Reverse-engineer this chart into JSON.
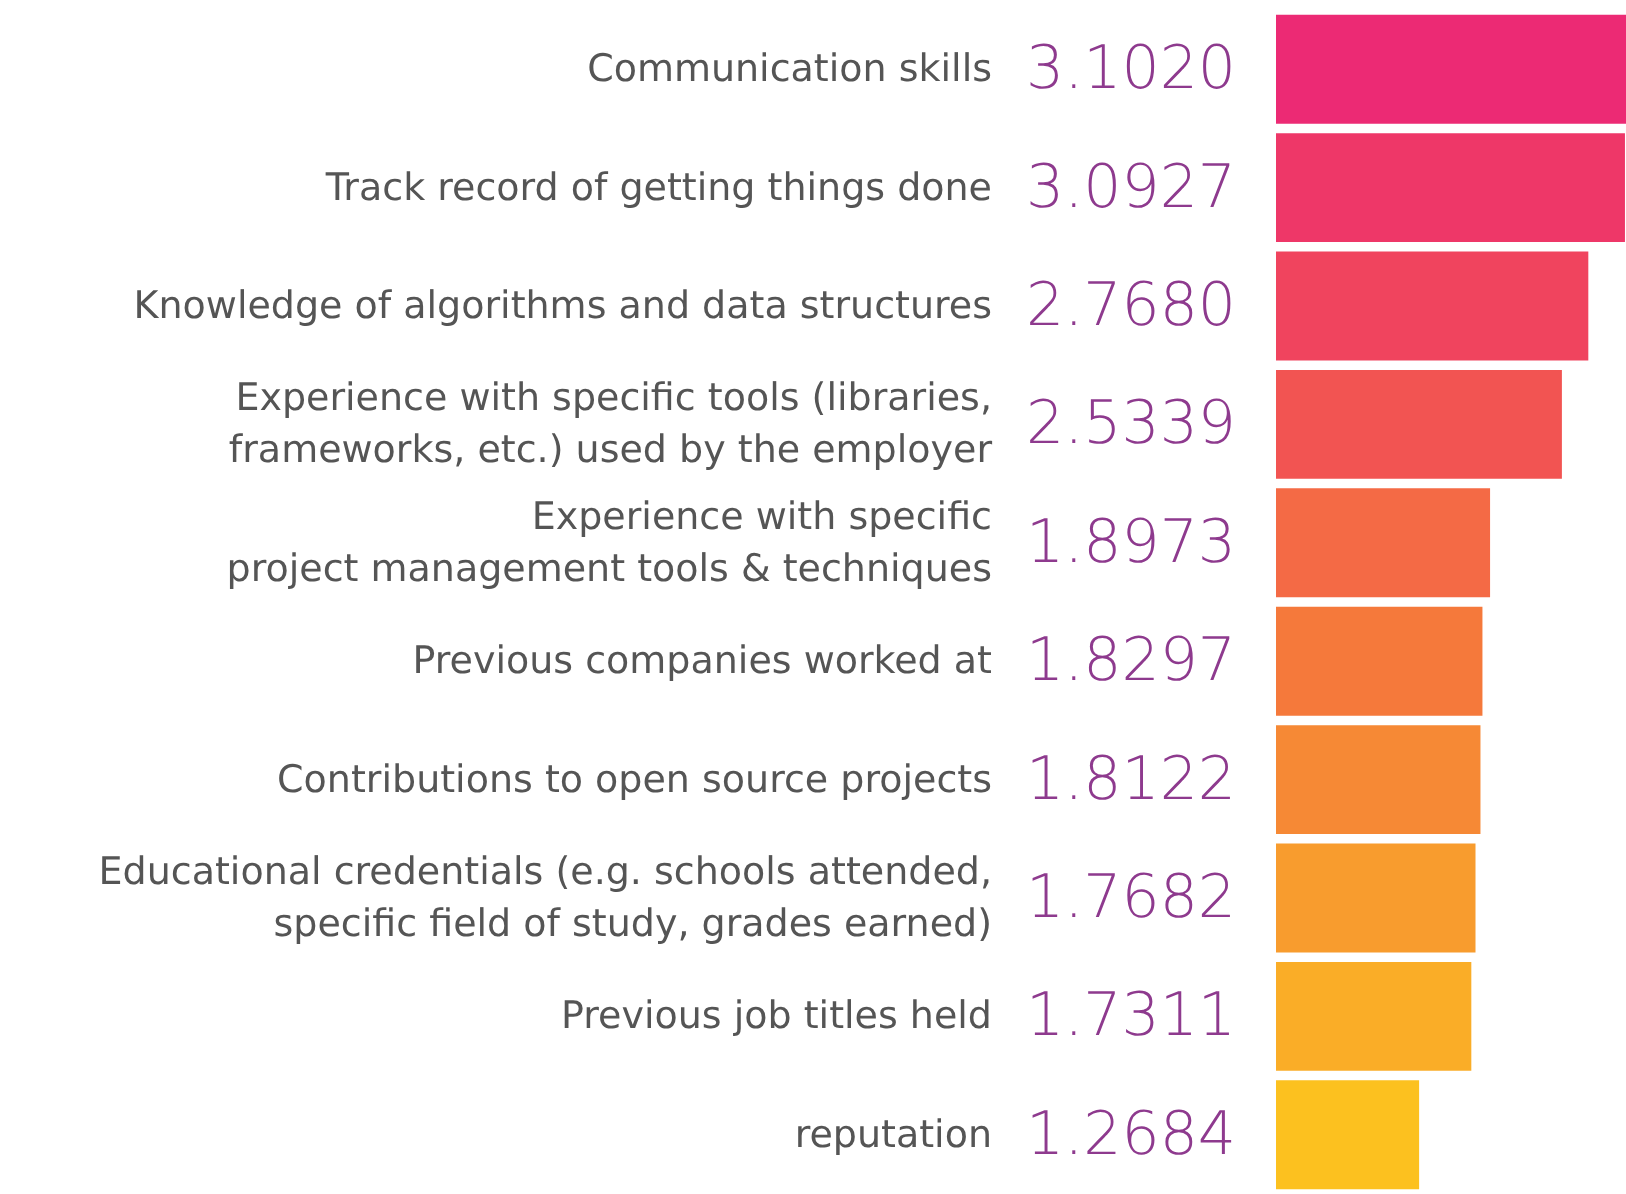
{
  "chart_data": {
    "type": "bar",
    "orientation": "horizontal",
    "categories": [
      "Communication skills",
      "Track record of getting things done",
      "Knowledge of algorithms and data structures",
      "Experience with specific tools (libraries,\nframeworks, etc.) used by the employer",
      "Experience with specific\nproject management tools & techniques",
      "Previous companies worked at",
      "Contributions to open source projects",
      "Educational credentials (e.g. schools attended,\nspecific field of study, grades earned)",
      "Previous job titles held",
      "reputation"
    ],
    "values": [
      3.102,
      3.0927,
      2.768,
      2.5339,
      1.8973,
      1.8297,
      1.8122,
      1.7682,
      1.7311,
      1.2684
    ],
    "value_labels": [
      "3.1020",
      "3.0927",
      "2.7680",
      "2.5339",
      "1.8973",
      "1.8297",
      "1.8122",
      "1.7682",
      "1.7311",
      "1.2684"
    ],
    "colors": [
      "#ec2a74",
      "#ee3768",
      "#f0445e",
      "#f25452",
      "#f46a45",
      "#f5793b",
      "#f68935",
      "#f89c2e",
      "#faad27",
      "#fcc11f"
    ]
  }
}
